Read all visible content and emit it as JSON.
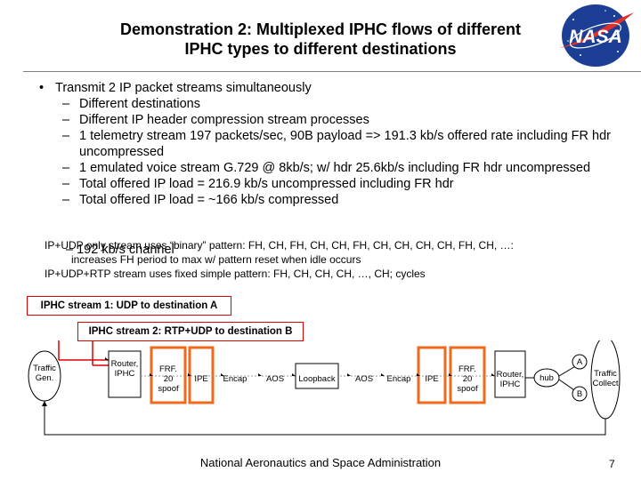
{
  "title_line1": "Demonstration 2: Multiplexed IPHC flows of different",
  "title_line2": "IPHC types to different destinations",
  "logo": {
    "text": "NASA",
    "colors": {
      "blue": "#1c3f95",
      "red": "#e0302a"
    }
  },
  "bullet": {
    "text": "Transmit 2 IP packet streams simultaneously",
    "subs": [
      "Different destinations",
      "Different IP header compression stream processes",
      "1 telemetry stream 197 packets/sec, 90B payload => 191.3 kb/s offered rate including FR hdr uncompressed",
      "1 emulated voice stream G.729 @ 8kb/s; w/ hdr 25.6kb/s including FR hdr uncompressed",
      "Total offered IP load = 216.9 kb/s uncompressed including FR hdr",
      "Total offered IP load = ~166 kb/s compressed",
      "192 kb/s channel"
    ]
  },
  "notes": {
    "line1": "IP+UDP only stream uses “binary” pattern: FH, CH, FH, CH, CH, FH, CH, CH, CH, CH, FH, CH, …:",
    "line2": "increases FH period to max w/ pattern reset when idle occurs",
    "line3": "IP+UDP+RTP stream uses fixed simple pattern: FH, CH, CH, CH, …, CH; cycles"
  },
  "stream1_label": "IPHC stream 1: UDP to destination A",
  "stream2_label": "IPHC stream 2: RTP+UDP to destination B",
  "diagram": {
    "traffic_gen": "Traffic Gen.",
    "router_left": [
      "Router,",
      "IPHC"
    ],
    "frf_left": [
      "FRF.",
      "20",
      "spoof"
    ],
    "ipe": "IPE",
    "encap": "Encap",
    "aos": "AOS",
    "loopback": "Loopback",
    "frf_right": [
      "FRF.",
      "20",
      "spoof"
    ],
    "router_right": [
      "Router,",
      "IPHC"
    ],
    "hub": "hub",
    "dest_a": "A",
    "dest_b": "B",
    "traffic_collect": [
      "Traffic",
      "Collect"
    ]
  },
  "colors": {
    "stream_red": "#e00000",
    "highlight_orange": "#f06a1c",
    "line_gray": "#999999"
  },
  "footer": "National Aeronautics and Space Administration",
  "page_number": "7"
}
